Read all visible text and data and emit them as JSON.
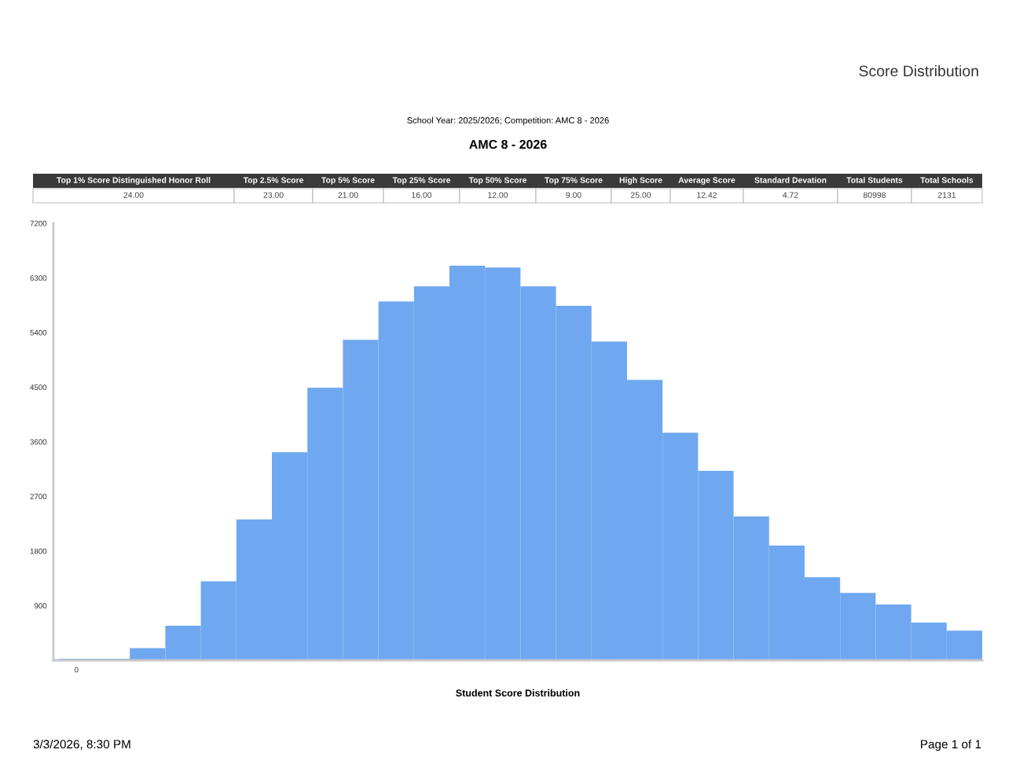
{
  "chart_data": {
    "type": "bar",
    "title": "AMC 8 - 2026",
    "subtitle": "School Year: 2025/2026; Competition: AMC 8 - 2026",
    "xlabel": "Student Score Distribution",
    "categories": [
      "0",
      null,
      null,
      null,
      null,
      null,
      null,
      null,
      null,
      null,
      null,
      null,
      null,
      null,
      null,
      null,
      null,
      null,
      null,
      null,
      null,
      null,
      null,
      null,
      null,
      null
    ],
    "values": [
      25,
      25,
      200,
      570,
      1300,
      2320,
      3430,
      4490,
      5280,
      5910,
      6160,
      6500,
      6470,
      6160,
      5840,
      5250,
      4620,
      3750,
      3120,
      2370,
      1890,
      1370,
      1110,
      920,
      620,
      490
    ],
    "color": "#6fa8f0",
    "ylim": [
      0,
      7200
    ],
    "yticks": [
      900,
      1800,
      2700,
      3600,
      4500,
      5400,
      6300,
      7200
    ],
    "grid": false,
    "legend": false,
    "annotations": [
      "Score Distribution",
      "Top 1% Score Distinguished Honor Roll",
      "Top 2.5% Score",
      "Top 5% Score",
      "Top 25% Score",
      "Top 50% Score",
      "Top 75% Score",
      "High Score",
      "Average Score",
      "Standard Devation",
      "Total Students",
      "Total Schools",
      "24.00",
      "23.00",
      "21.00",
      "16.00",
      "12.00",
      "9.00",
      "25.00",
      "12.42",
      "4.72",
      "80998",
      "2131",
      "3/3/2026, 8:30 PM",
      "Page 1 of 1"
    ]
  }
}
